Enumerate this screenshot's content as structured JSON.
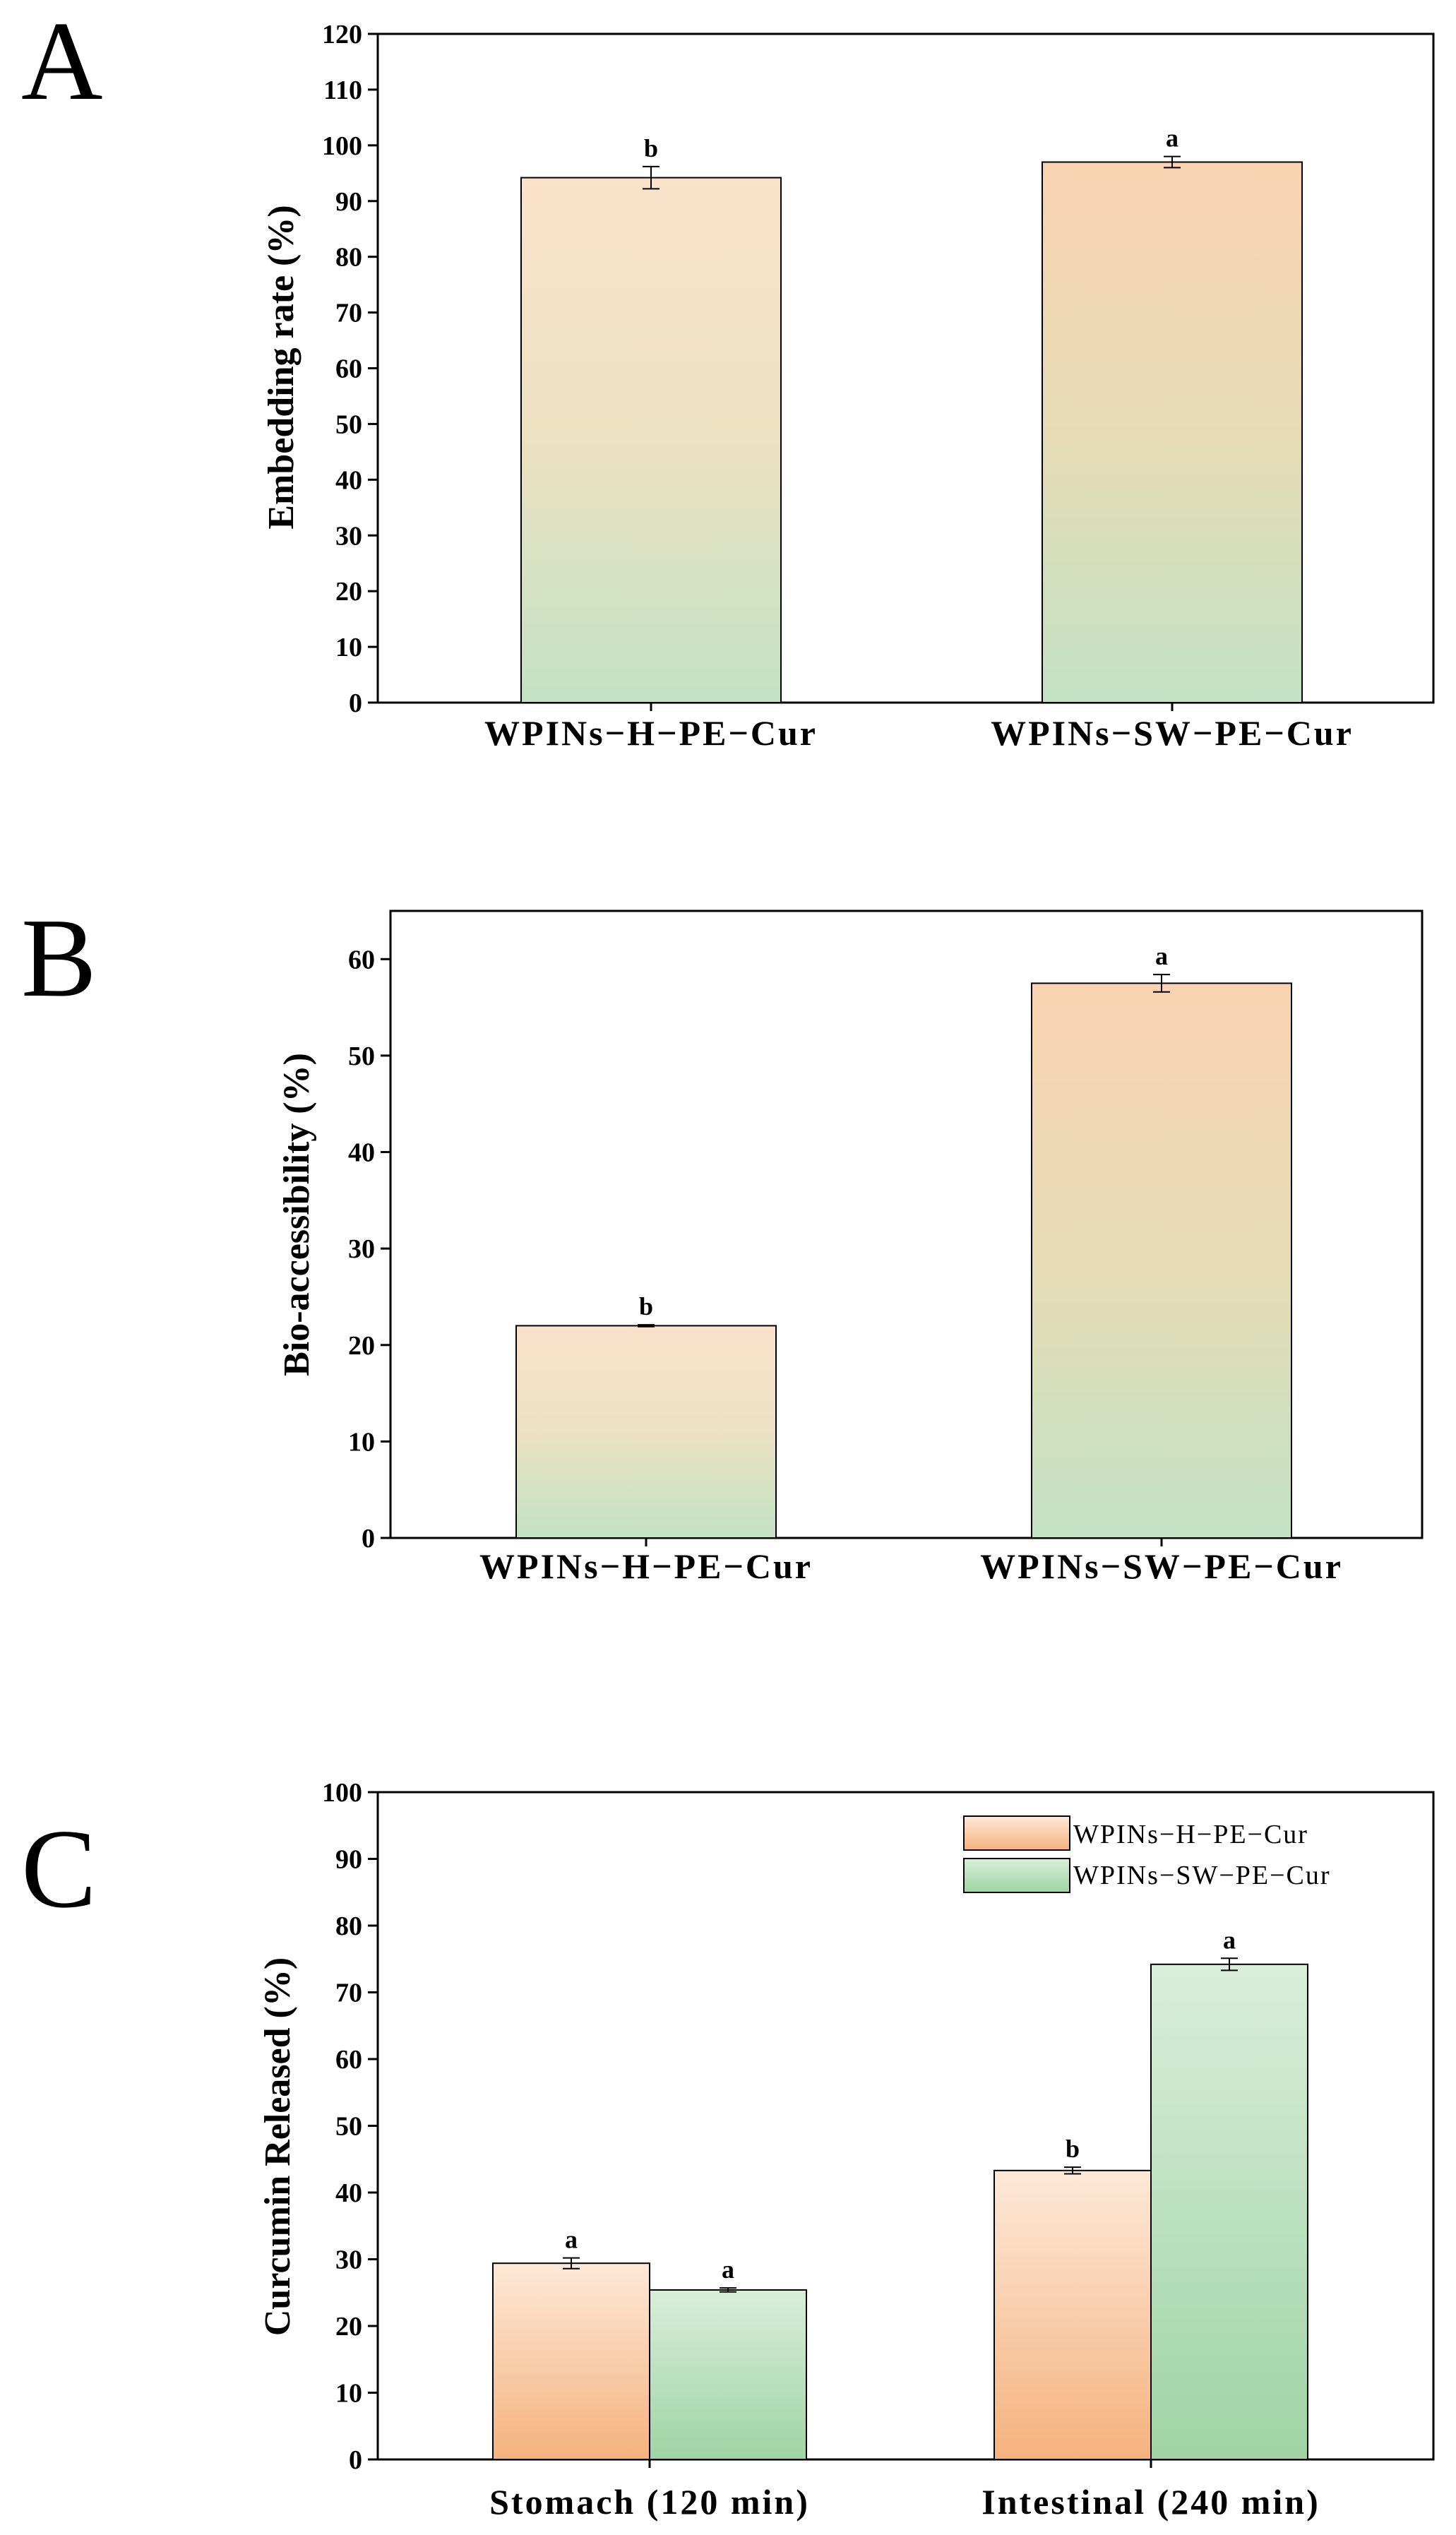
{
  "colors": {
    "peach": "#f6b987",
    "peach_light": "#fbe6d3",
    "green": "#a6d8ab",
    "green_light": "#d6ecd6",
    "ink": "#000000"
  },
  "chart_data": [
    {
      "type": "bar",
      "panel_label": "A",
      "title": "",
      "xlabel": "",
      "ylabel": "Embedding rate (%)",
      "ylim": [
        0,
        120
      ],
      "yticks": [
        0,
        10,
        20,
        30,
        40,
        50,
        60,
        70,
        80,
        90,
        100,
        110,
        120
      ],
      "categories": [
        "WPINs−H−PE−Cur",
        "WPINs−SW−PE−Cur"
      ],
      "series": [
        {
          "name": "",
          "values": [
            94.2,
            97.0
          ],
          "errors": [
            2.0,
            1.0
          ],
          "letters": [
            "b",
            "a"
          ],
          "fill": "peach-to-green"
        }
      ]
    },
    {
      "type": "bar",
      "panel_label": "B",
      "title": "",
      "xlabel": "",
      "ylabel": "Bio-accessibility (%)",
      "ylim": [
        0,
        65
      ],
      "yticks": [
        0,
        10,
        20,
        30,
        40,
        50,
        60
      ],
      "categories": [
        "WPINs−H−PE−Cur",
        "WPINs−SW−PE−Cur"
      ],
      "series": [
        {
          "name": "",
          "values": [
            22.0,
            57.5
          ],
          "errors": [
            0.1,
            0.9
          ],
          "letters": [
            "b",
            "a"
          ],
          "fill": "peach-to-green"
        }
      ]
    },
    {
      "type": "bar",
      "panel_label": "C",
      "title": "",
      "xlabel": "",
      "ylabel": "Curcumin Released (%)",
      "ylim": [
        0,
        100
      ],
      "yticks": [
        0,
        10,
        20,
        30,
        40,
        50,
        60,
        70,
        80,
        90,
        100
      ],
      "legend_position": "top-right",
      "categories": [
        "Stomach (120 min)",
        "Intestinal (240 min)"
      ],
      "series": [
        {
          "name": "WPINs−H−PE−Cur",
          "values": [
            29.4,
            43.3
          ],
          "errors": [
            0.8,
            0.5
          ],
          "letters": [
            "a",
            "b"
          ],
          "fill": "peach"
        },
        {
          "name": "WPINs−SW−PE−Cur",
          "values": [
            25.4,
            74.2
          ],
          "errors": [
            0.3,
            0.9
          ],
          "letters": [
            "a",
            "a"
          ],
          "fill": "green"
        }
      ]
    }
  ]
}
